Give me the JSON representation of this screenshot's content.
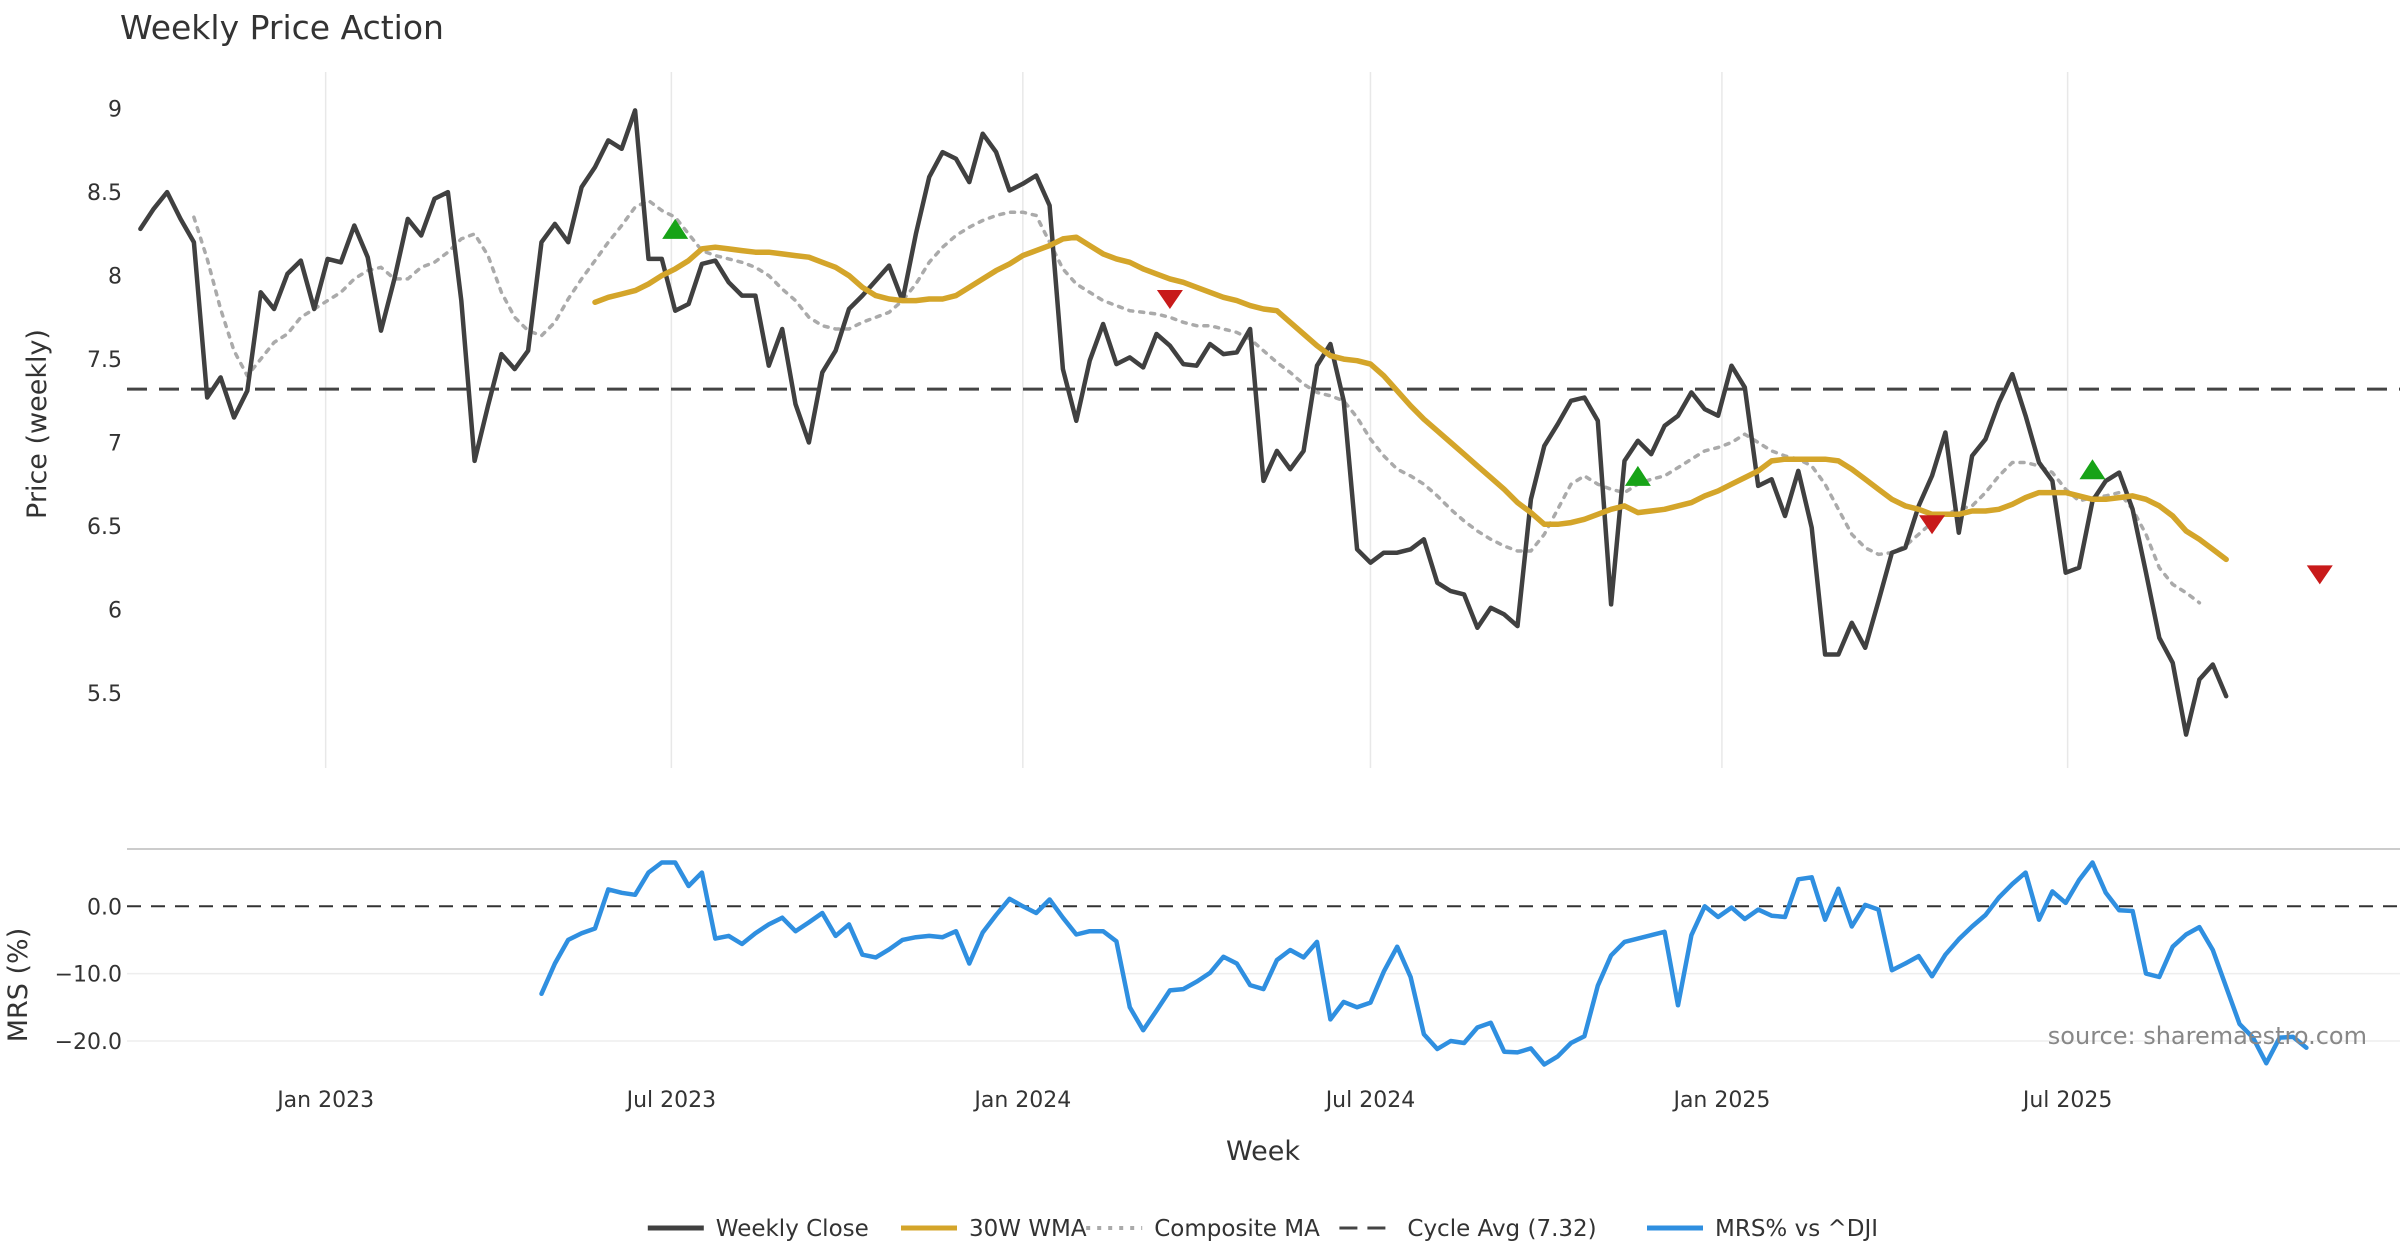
{
  "chart_data": {
    "type": "line",
    "title": "Weekly Price Action",
    "xlabel": "Week",
    "source": "source: sharemaestro.com",
    "x_ticks": [
      "Jan 2023",
      "Jul 2023",
      "Jan 2024",
      "Jul 2024",
      "Jan 2025",
      "Jul 2025"
    ],
    "x_range": [
      "2022-09-19",
      "2025-12-22"
    ],
    "grid": true,
    "legend_placement": "bottom-center",
    "colors": {
      "close": "#404040",
      "wma": "#d4a52a",
      "composite": "#aaaaaa",
      "cycle": "#444444",
      "mrs": "#2f8fe0",
      "buy": "#17a317",
      "sell": "#c81a1a"
    },
    "price_panel": {
      "ylabel": "Price (weekly)",
      "yticks": [
        "5.5",
        "6",
        "6.5",
        "7",
        "7.5",
        "8",
        "8.5",
        "9"
      ],
      "ylim": [
        5.05,
        9.1
      ],
      "cycle_avg": 7.32,
      "weekly_close": {
        "name": "Weekly Close",
        "start": "2022-09-26",
        "values": [
          8.28,
          8.4,
          8.5,
          8.34,
          8.2,
          7.27,
          7.39,
          7.15,
          7.31,
          7.9,
          7.8,
          8.01,
          8.09,
          7.8,
          8.1,
          8.08,
          8.3,
          8.11,
          7.67,
          7.98,
          8.34,
          8.24,
          8.46,
          8.5,
          7.85,
          6.89,
          7.22,
          7.53,
          7.44,
          7.55,
          8.2,
          8.31,
          8.2,
          8.53,
          8.65,
          8.81,
          8.76,
          8.99,
          8.1,
          8.1,
          7.79,
          7.83,
          8.07,
          8.09,
          7.96,
          7.88,
          7.88,
          7.46,
          7.68,
          7.23,
          7.0,
          7.42,
          7.55,
          7.8,
          7.88,
          7.97,
          8.06,
          7.85,
          8.25,
          8.59,
          8.74,
          8.7,
          8.56,
          8.85,
          8.74,
          8.51,
          8.55,
          8.6,
          8.42,
          7.44,
          7.13,
          7.49,
          7.71,
          7.47,
          7.51,
          7.45,
          7.65,
          7.58,
          7.47,
          7.46,
          7.59,
          7.53,
          7.54,
          7.68,
          6.77,
          6.95,
          6.84,
          6.95,
          7.46,
          7.59,
          7.25,
          6.36,
          6.28,
          6.34,
          6.34,
          6.36,
          6.42,
          6.16,
          6.11,
          6.09,
          5.89,
          6.01,
          5.97,
          5.9,
          6.66,
          6.98,
          7.11,
          7.25,
          7.27,
          7.13,
          6.03,
          6.89,
          7.01,
          6.93,
          7.1,
          7.16,
          7.3,
          7.2,
          7.16,
          7.46,
          7.33,
          6.74,
          6.78,
          6.56,
          6.83,
          6.49,
          5.73,
          5.73,
          5.92,
          5.77,
          6.05,
          6.34,
          6.37,
          6.62,
          6.8,
          7.06,
          6.46,
          6.92,
          7.02,
          7.24,
          7.41,
          7.16,
          6.88,
          6.77,
          6.22,
          6.25,
          6.65,
          6.77,
          6.82,
          6.6,
          6.22,
          5.83,
          5.68,
          5.25,
          5.58,
          5.67,
          5.48
        ]
      },
      "wma_30w": {
        "name": "30W WMA",
        "start": "2023-05-22",
        "values": [
          7.84,
          7.87,
          7.89,
          7.91,
          7.95,
          8.0,
          8.04,
          8.09,
          8.16,
          8.17,
          8.16,
          8.15,
          8.14,
          8.14,
          8.13,
          8.12,
          8.11,
          8.08,
          8.05,
          8.0,
          7.93,
          7.88,
          7.86,
          7.85,
          7.85,
          7.86,
          7.86,
          7.88,
          7.93,
          7.98,
          8.03,
          8.07,
          8.12,
          8.15,
          8.18,
          8.22,
          8.23,
          8.18,
          8.13,
          8.1,
          8.08,
          8.04,
          8.01,
          7.98,
          7.96,
          7.93,
          7.9,
          7.87,
          7.85,
          7.82,
          7.8,
          7.79,
          7.72,
          7.65,
          7.58,
          7.52,
          7.5,
          7.49,
          7.47,
          7.4,
          7.31,
          7.22,
          7.14,
          7.07,
          7.0,
          6.93,
          6.86,
          6.79,
          6.72,
          6.64,
          6.58,
          6.51,
          6.51,
          6.52,
          6.54,
          6.57,
          6.6,
          6.62,
          6.58,
          6.59,
          6.6,
          6.62,
          6.64,
          6.68,
          6.71,
          6.75,
          6.79,
          6.83,
          6.89,
          6.9,
          6.9,
          6.9,
          6.9,
          6.89,
          6.84,
          6.78,
          6.72,
          6.66,
          6.62,
          6.6,
          6.57,
          6.57,
          6.57,
          6.59,
          6.59,
          6.6,
          6.63,
          6.67,
          6.7,
          6.7,
          6.7,
          6.68,
          6.66,
          6.66,
          6.67,
          6.68,
          6.66,
          6.62,
          6.56,
          6.47,
          6.42,
          6.36,
          6.3
        ]
      },
      "composite_ma": {
        "name": "Composite MA",
        "start": "2022-10-24",
        "values": [
          8.35,
          8.1,
          7.8,
          7.55,
          7.4,
          7.5,
          7.6,
          7.65,
          7.75,
          7.8,
          7.85,
          7.9,
          7.98,
          8.03,
          8.05,
          7.98,
          7.98,
          8.05,
          8.08,
          8.14,
          8.22,
          8.25,
          8.12,
          7.9,
          7.75,
          7.67,
          7.64,
          7.72,
          7.86,
          7.98,
          8.09,
          8.2,
          8.3,
          8.41,
          8.45,
          8.39,
          8.35,
          8.25,
          8.15,
          8.12,
          8.1,
          8.08,
          8.05,
          8.0,
          7.92,
          7.85,
          7.75,
          7.7,
          7.68,
          7.68,
          7.72,
          7.75,
          7.78,
          7.85,
          7.95,
          8.08,
          8.17,
          8.24,
          8.29,
          8.33,
          8.36,
          8.38,
          8.38,
          8.36,
          8.2,
          8.04,
          7.95,
          7.9,
          7.85,
          7.82,
          7.79,
          7.78,
          7.77,
          7.75,
          7.72,
          7.7,
          7.7,
          7.68,
          7.66,
          7.62,
          7.55,
          7.48,
          7.42,
          7.35,
          7.3,
          7.28,
          7.25,
          7.15,
          7.02,
          6.92,
          6.84,
          6.8,
          6.75,
          6.68,
          6.6,
          6.53,
          6.47,
          6.42,
          6.38,
          6.35,
          6.35,
          6.45,
          6.6,
          6.75,
          6.8,
          6.75,
          6.72,
          6.7,
          6.75,
          6.78,
          6.8,
          6.85,
          6.9,
          6.95,
          6.97,
          7.0,
          7.05,
          7.0,
          6.95,
          6.92,
          6.9,
          6.86,
          6.75,
          6.6,
          6.45,
          6.37,
          6.33,
          6.34,
          6.38,
          6.45,
          6.52,
          6.57,
          6.6,
          6.62,
          6.7,
          6.8,
          6.88,
          6.88,
          6.86,
          6.82,
          6.72,
          6.65,
          6.67,
          6.68,
          6.7,
          6.6,
          6.45,
          6.25,
          6.15,
          6.1,
          6.04
        ]
      },
      "signals": {
        "buy": [
          {
            "x": "2023-07-03",
            "y": 8.28
          },
          {
            "x": "2024-11-18",
            "y": 6.8
          },
          {
            "x": "2025-07-14",
            "y": 6.84
          }
        ],
        "sell": [
          {
            "x": "2024-03-18",
            "y": 7.86
          },
          {
            "x": "2025-04-21",
            "y": 6.51
          },
          {
            "x": "2025-11-10",
            "y": 6.21
          }
        ]
      }
    },
    "mrs_panel": {
      "ylabel": "MRS (%)",
      "yticks": [
        "0.0",
        "−10.0",
        "−20.0"
      ],
      "ylim": [
        -25.5,
        8.5
      ],
      "zero_line": 0,
      "series": {
        "name": "MRS% vs ^DJI",
        "start": "2023-04-24",
        "values": [
          -13.0,
          -8.5,
          -5.0,
          -4.0,
          -3.3,
          2.5,
          2.0,
          1.7,
          5.0,
          6.5,
          6.5,
          3.0,
          5.0,
          -4.8,
          -4.4,
          -5.6,
          -4.0,
          -2.7,
          -1.7,
          -3.7,
          -2.4,
          -1.0,
          -4.4,
          -2.7,
          -7.2,
          -7.6,
          -6.4,
          -5.0,
          -4.6,
          -4.4,
          -4.6,
          -3.7,
          -8.5,
          -3.9,
          -1.3,
          1.1,
          0.0,
          -1.0,
          1.0,
          -1.7,
          -4.2,
          -3.7,
          -3.7,
          -5.2,
          -15.0,
          -18.4,
          -15.5,
          -12.5,
          -12.3,
          -11.2,
          -9.9,
          -7.5,
          -8.5,
          -11.7,
          -12.3,
          -8.0,
          -6.5,
          -7.6,
          -5.3,
          -16.8,
          -14.2,
          -15.0,
          -14.3,
          -9.7,
          -6.0,
          -10.5,
          -19.0,
          -21.2,
          -20.0,
          -20.3,
          -18.0,
          -17.3,
          -21.6,
          -21.7,
          -21.1,
          -23.5,
          -22.3,
          -20.3,
          -19.3,
          -11.8,
          -7.3,
          -5.3,
          -4.8,
          -4.3,
          -3.8,
          -14.7,
          -4.3,
          0.0,
          -1.6,
          -0.2,
          -1.9,
          -0.5,
          -1.4,
          -1.6,
          4.0,
          4.3,
          -2.0,
          2.6,
          -3.0,
          0.2,
          -0.5,
          -9.5,
          -8.5,
          -7.4,
          -10.4,
          -7.2,
          -4.9,
          -3.0,
          -1.3,
          1.3,
          3.3,
          5.0,
          -2.0,
          2.2,
          0.5,
          3.9,
          6.5,
          2.0,
          -0.6,
          -0.7,
          -10.0,
          -10.5,
          -6.0,
          -4.2,
          -3.1,
          -6.5,
          -12.0,
          -17.5,
          -19.5,
          -23.3,
          -19.5,
          -19.4,
          -21.0
        ]
      }
    },
    "legend": [
      {
        "label": "Weekly Close",
        "style": "solid",
        "color": "#404040"
      },
      {
        "label": "30W WMA",
        "style": "solid",
        "color": "#d4a52a"
      },
      {
        "label": "Composite MA",
        "style": "dotted",
        "color": "#aaaaaa"
      },
      {
        "label": "Cycle Avg (7.32)",
        "style": "dashed",
        "color": "#444444"
      },
      {
        "label": "MRS% vs ^DJI",
        "style": "solid",
        "color": "#2f8fe0"
      }
    ]
  }
}
